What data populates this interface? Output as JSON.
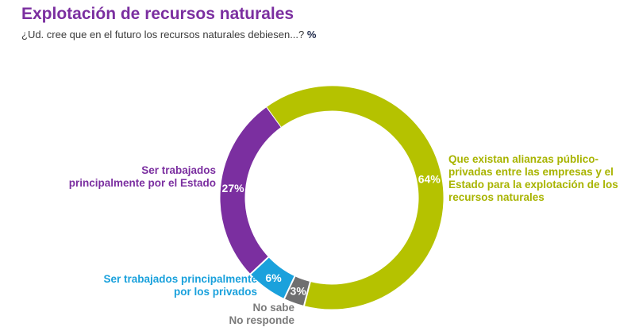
{
  "header": {
    "title": "Explotación de recursos naturales",
    "subtitle": "¿Ud. cree que en el futuro los recursos naturales debiesen...?",
    "unit": "%"
  },
  "chart_data": {
    "type": "pie",
    "donut": true,
    "title": "Explotación de recursos naturales",
    "subtitle": "¿Ud. cree que en el futuro los recursos naturales debiesen...?",
    "unit": "%",
    "slices": [
      {
        "label": "Que existan alianzas público-privadas entre las empresas y el Estado para la explotación de los recursos naturales",
        "value": 64,
        "display": "64%",
        "color": "#b5c200"
      },
      {
        "label": "No sabe No responde",
        "value": 3,
        "display": "3%",
        "color": "#6f6f70"
      },
      {
        "label": "Ser trabajados principalmente por los privados",
        "value": 6,
        "display": "6%",
        "color": "#1aa1dc"
      },
      {
        "label": "Ser trabajados principalmente por el Estado",
        "value": 27,
        "display": "27%",
        "color": "#7b2fa0"
      }
    ]
  },
  "labels": {
    "alianzas": [
      "Que existan alianzas público-",
      "privadas entre las empresas y el",
      "Estado para la explotación de los",
      "recursos naturales"
    ],
    "estado": [
      "Ser trabajados",
      "principalmente por el Estado"
    ],
    "privados": [
      "Ser trabajados principalmente",
      "por los privados"
    ],
    "nsnr": [
      "No sabe",
      "No responde"
    ]
  }
}
